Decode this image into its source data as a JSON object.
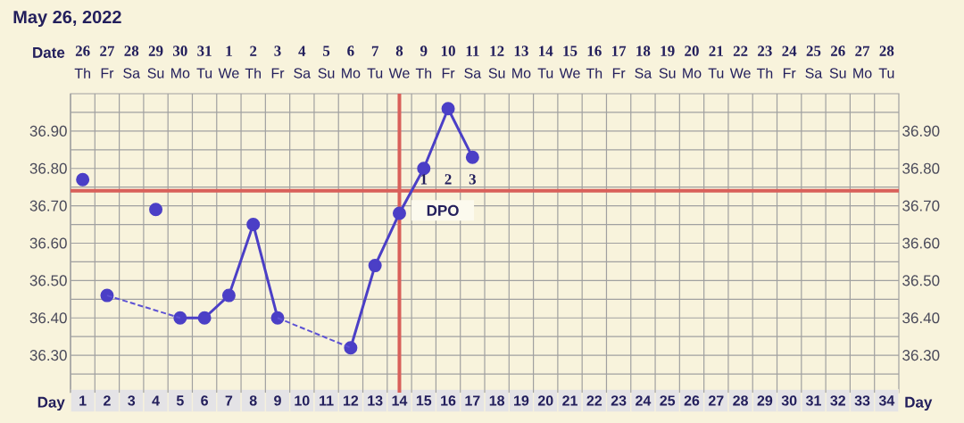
{
  "chart_data": {
    "type": "line",
    "title": "May 26, 2022",
    "xlabel": "Day",
    "x2label": "Date",
    "xlim": [
      0.5,
      34.5
    ],
    "xticks": [
      1,
      2,
      3,
      4,
      5,
      6,
      7,
      8,
      9,
      10,
      11,
      12,
      13,
      14,
      15,
      16,
      17,
      18,
      19,
      20,
      21,
      22,
      23,
      24,
      25,
      26,
      27,
      28,
      29,
      30,
      31,
      32,
      33,
      34
    ],
    "x2lim": [
      "2022-05-25T12:00",
      "2022-06-28T12:00"
    ],
    "x2ticks": [
      {
        "value": "2022-05-26",
        "label": "26"
      },
      {
        "value": "2022-05-27",
        "label": "27"
      },
      {
        "value": "2022-05-28",
        "label": "28"
      },
      {
        "value": "2022-05-29",
        "label": "29"
      },
      {
        "value": "2022-05-30",
        "label": "30"
      },
      {
        "value": "2022-05-31",
        "label": "31"
      },
      {
        "value": "2022-06-01",
        "label": "1"
      },
      {
        "value": "2022-06-02",
        "label": "2"
      },
      {
        "value": "2022-06-03",
        "label": "3"
      },
      {
        "value": "2022-06-04",
        "label": "4"
      },
      {
        "value": "2022-06-05",
        "label": "5"
      },
      {
        "value": "2022-06-06",
        "label": "6"
      },
      {
        "value": "2022-06-07",
        "label": "7"
      },
      {
        "value": "2022-06-08",
        "label": "8"
      },
      {
        "value": "2022-06-09",
        "label": "9"
      },
      {
        "value": "2022-06-10",
        "label": "10"
      },
      {
        "value": "2022-06-11",
        "label": "11"
      },
      {
        "value": "2022-06-12",
        "label": "12"
      },
      {
        "value": "2022-06-13",
        "label": "13"
      },
      {
        "value": "2022-06-14",
        "label": "14"
      },
      {
        "value": "2022-06-15",
        "label": "15"
      },
      {
        "value": "2022-06-16",
        "label": "16"
      },
      {
        "value": "2022-06-17",
        "label": "17"
      },
      {
        "value": "2022-06-18",
        "label": "18"
      },
      {
        "value": "2022-06-19",
        "label": "19"
      },
      {
        "value": "2022-06-20",
        "label": "20"
      },
      {
        "value": "2022-06-21",
        "label": "21"
      },
      {
        "value": "2022-06-22",
        "label": "22"
      },
      {
        "value": "2022-06-23",
        "label": "23"
      },
      {
        "value": "2022-06-24",
        "label": "24"
      },
      {
        "value": "2022-06-25",
        "label": "25"
      },
      {
        "value": "2022-06-26",
        "label": "26"
      },
      {
        "value": "2022-06-27",
        "label": "27"
      },
      {
        "value": "2022-06-28",
        "label": "28"
      }
    ],
    "ylim": [
      36.2,
      37.0
    ],
    "yticks": [
      {
        "value": 36.3,
        "label": "36.30"
      },
      {
        "value": 36.4,
        "label": "36.40"
      },
      {
        "value": 36.5,
        "label": "36.50"
      },
      {
        "value": 36.6,
        "label": "36.60"
      },
      {
        "value": 36.7,
        "label": "36.70"
      },
      {
        "value": 36.8,
        "label": "36.80"
      },
      {
        "value": 36.9,
        "label": "36.90"
      }
    ],
    "y2lim": [
      36.2,
      37.0
    ],
    "y2ticks": [
      {
        "value": 36.3,
        "label": "36.30"
      },
      {
        "value": 36.4,
        "label": "36.40"
      },
      {
        "value": 36.5,
        "label": "36.50"
      },
      {
        "value": 36.6,
        "label": "36.60"
      },
      {
        "value": 36.7,
        "label": "36.70"
      },
      {
        "value": 36.8,
        "label": "36.80"
      },
      {
        "value": 36.9,
        "label": "36.90"
      }
    ],
    "grid": true,
    "marker": "circle",
    "line_style": "solid",
    "series": [
      {
        "color": "#4b3fc6",
        "x": [
          2,
          3,
          4,
          5,
          6,
          7,
          8,
          9,
          10,
          11,
          12,
          13,
          14,
          15,
          16,
          17
        ],
        "values": [
          36.46,
          null,
          null,
          36.4,
          36.4,
          36.46,
          36.65,
          36.4,
          null,
          null,
          36.32,
          36.54,
          36.68,
          36.8,
          36.96,
          36.83
        ]
      },
      {
        "color": "#5d52d4",
        "line_style": "dashed",
        "marker": "none",
        "x": [
          2,
          5
        ],
        "values": [
          36.46,
          36.4
        ]
      },
      {
        "color": "#5d52d4",
        "line_style": "dashed",
        "marker": "none",
        "x": [
          9,
          12
        ],
        "values": [
          36.4,
          36.32
        ]
      },
      {
        "type": "scatter",
        "color": "#4b3fc6",
        "x": [
          1,
          4
        ],
        "values": [
          36.77,
          36.69
        ]
      }
    ],
    "ref_lines": [
      {
        "axis": "y",
        "value": 36.74,
        "color": "#d9605a"
      },
      {
        "axis": "x",
        "value": 14,
        "color": "#d9605a"
      }
    ],
    "annotations": [
      "Th",
      "Fr",
      "Sa",
      "Su",
      "Mo",
      "Tu",
      "We",
      "Th",
      "Fr",
      "Sa",
      "Su",
      "Mo",
      "Tu",
      "We",
      "Th",
      "Fr",
      "Sa",
      "Su",
      "Mo",
      "Tu",
      "We",
      "Th",
      "Fr",
      "Sa",
      "Su",
      "Mo",
      "Tu",
      "We",
      "Th",
      "Fr",
      "Sa",
      "Su",
      "Mo",
      "Tu",
      "1",
      "2",
      "3",
      "DPO"
    ]
  }
}
